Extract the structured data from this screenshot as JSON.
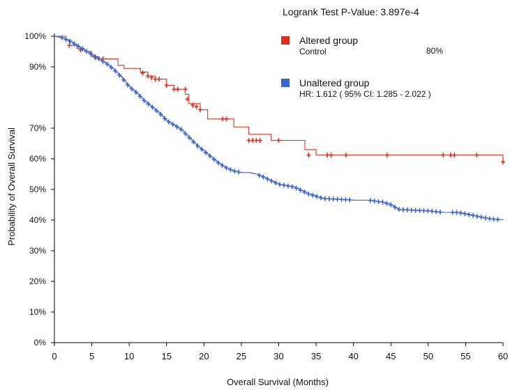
{
  "chart_data": {
    "type": "line",
    "title": "",
    "annotation": "Logrank Test P-Value: 3.897e-4",
    "xlabel": "Overall Survival (Months)",
    "ylabel": "Probability of Overall Survival",
    "xlim": [
      0,
      60
    ],
    "ylim": [
      0,
      100
    ],
    "x_ticks": [
      "0",
      "5",
      "10",
      "15",
      "20",
      "25",
      "30",
      "35",
      "40",
      "45",
      "50",
      "55",
      "60"
    ],
    "y_ticks": [
      "0%",
      "10%",
      "20%",
      "30%",
      "40%",
      "50%",
      "60%",
      "70%",
      "90%",
      "100%"
    ],
    "y_tick_values": [
      0,
      10,
      20,
      30,
      40,
      50,
      60,
      70,
      90,
      100
    ],
    "grid": false,
    "legend_position": "top-right",
    "series": [
      {
        "name": "Altered group",
        "sub_label": "Control",
        "extra_label": "80%",
        "color": "#d7321f",
        "steps": [
          [
            0,
            100
          ],
          [
            1.5,
            98.8
          ],
          [
            2,
            97
          ],
          [
            3,
            96
          ],
          [
            4,
            95
          ],
          [
            5,
            93.3
          ],
          [
            6,
            92.6
          ],
          [
            8.5,
            90.5
          ],
          [
            9.3,
            89.5
          ],
          [
            11.5,
            88.3
          ],
          [
            12.5,
            87
          ],
          [
            13.5,
            86
          ],
          [
            15,
            84
          ],
          [
            16,
            82.7
          ],
          [
            17.5,
            81
          ],
          [
            18,
            78
          ],
          [
            19.5,
            76
          ],
          [
            20.5,
            73
          ],
          [
            24,
            70.4
          ],
          [
            26,
            68
          ],
          [
            29,
            66
          ],
          [
            33.5,
            63
          ],
          [
            35,
            61.2
          ],
          [
            60,
            61.2
          ],
          [
            60,
            59
          ]
        ],
        "censors": [
          [
            2,
            97
          ],
          [
            3.5,
            95.5
          ],
          [
            5.5,
            93
          ],
          [
            6.5,
            92.6
          ],
          [
            11.8,
            88
          ],
          [
            12.5,
            87
          ],
          [
            13,
            86.5
          ],
          [
            13.5,
            86
          ],
          [
            14,
            86
          ],
          [
            15,
            84
          ],
          [
            16,
            82.7
          ],
          [
            16.5,
            82.7
          ],
          [
            17.5,
            82.7
          ],
          [
            17.8,
            79.5
          ],
          [
            18.5,
            77.5
          ],
          [
            19,
            77
          ],
          [
            19.5,
            76
          ],
          [
            22.5,
            73
          ],
          [
            23,
            73
          ],
          [
            26,
            66
          ],
          [
            26.5,
            66
          ],
          [
            27,
            66
          ],
          [
            27.5,
            66
          ],
          [
            30,
            66
          ],
          [
            34,
            61.2
          ],
          [
            36.5,
            61.2
          ],
          [
            37,
            61.2
          ],
          [
            39,
            61.2
          ],
          [
            44.5,
            61.2
          ],
          [
            52,
            61.2
          ],
          [
            53,
            61.2
          ],
          [
            53.5,
            61.2
          ],
          [
            56.5,
            61.2
          ],
          [
            60,
            59
          ]
        ]
      },
      {
        "name": "Unaltered group",
        "sub_label": "HR: 1.612 ( 95% CI: 1.285 - 2.022 )",
        "color": "#3b64d0",
        "points": [
          [
            0,
            100
          ],
          [
            1,
            99.5
          ],
          [
            2,
            98.5
          ],
          [
            3,
            97
          ],
          [
            4,
            95.5
          ],
          [
            5,
            94
          ],
          [
            6,
            92.5
          ],
          [
            7,
            91
          ],
          [
            8,
            89
          ],
          [
            9,
            86.5
          ],
          [
            10,
            83.5
          ],
          [
            11,
            81.5
          ],
          [
            12,
            79
          ],
          [
            13,
            77
          ],
          [
            14,
            75
          ],
          [
            15,
            72.5
          ],
          [
            16,
            71
          ],
          [
            17,
            69.5
          ],
          [
            18,
            67
          ],
          [
            19,
            64.5
          ],
          [
            20,
            62.5
          ],
          [
            21,
            60.5
          ],
          [
            22,
            58.5
          ],
          [
            23,
            57
          ],
          [
            24,
            56
          ],
          [
            25,
            55.5
          ],
          [
            26,
            55.5
          ],
          [
            27,
            55
          ],
          [
            28,
            54
          ],
          [
            29,
            52.8
          ],
          [
            30,
            51.7
          ],
          [
            32,
            50.8
          ],
          [
            34,
            48.5
          ],
          [
            36,
            47
          ],
          [
            38,
            46.8
          ],
          [
            40,
            46.5
          ],
          [
            42,
            46.5
          ],
          [
            44,
            45.8
          ],
          [
            45,
            45
          ],
          [
            46,
            43.5
          ],
          [
            48,
            43.2
          ],
          [
            50,
            43
          ],
          [
            52,
            42.5
          ],
          [
            54,
            42.5
          ],
          [
            56,
            41.5
          ],
          [
            58,
            40.5
          ],
          [
            60,
            40
          ]
        ]
      }
    ]
  }
}
